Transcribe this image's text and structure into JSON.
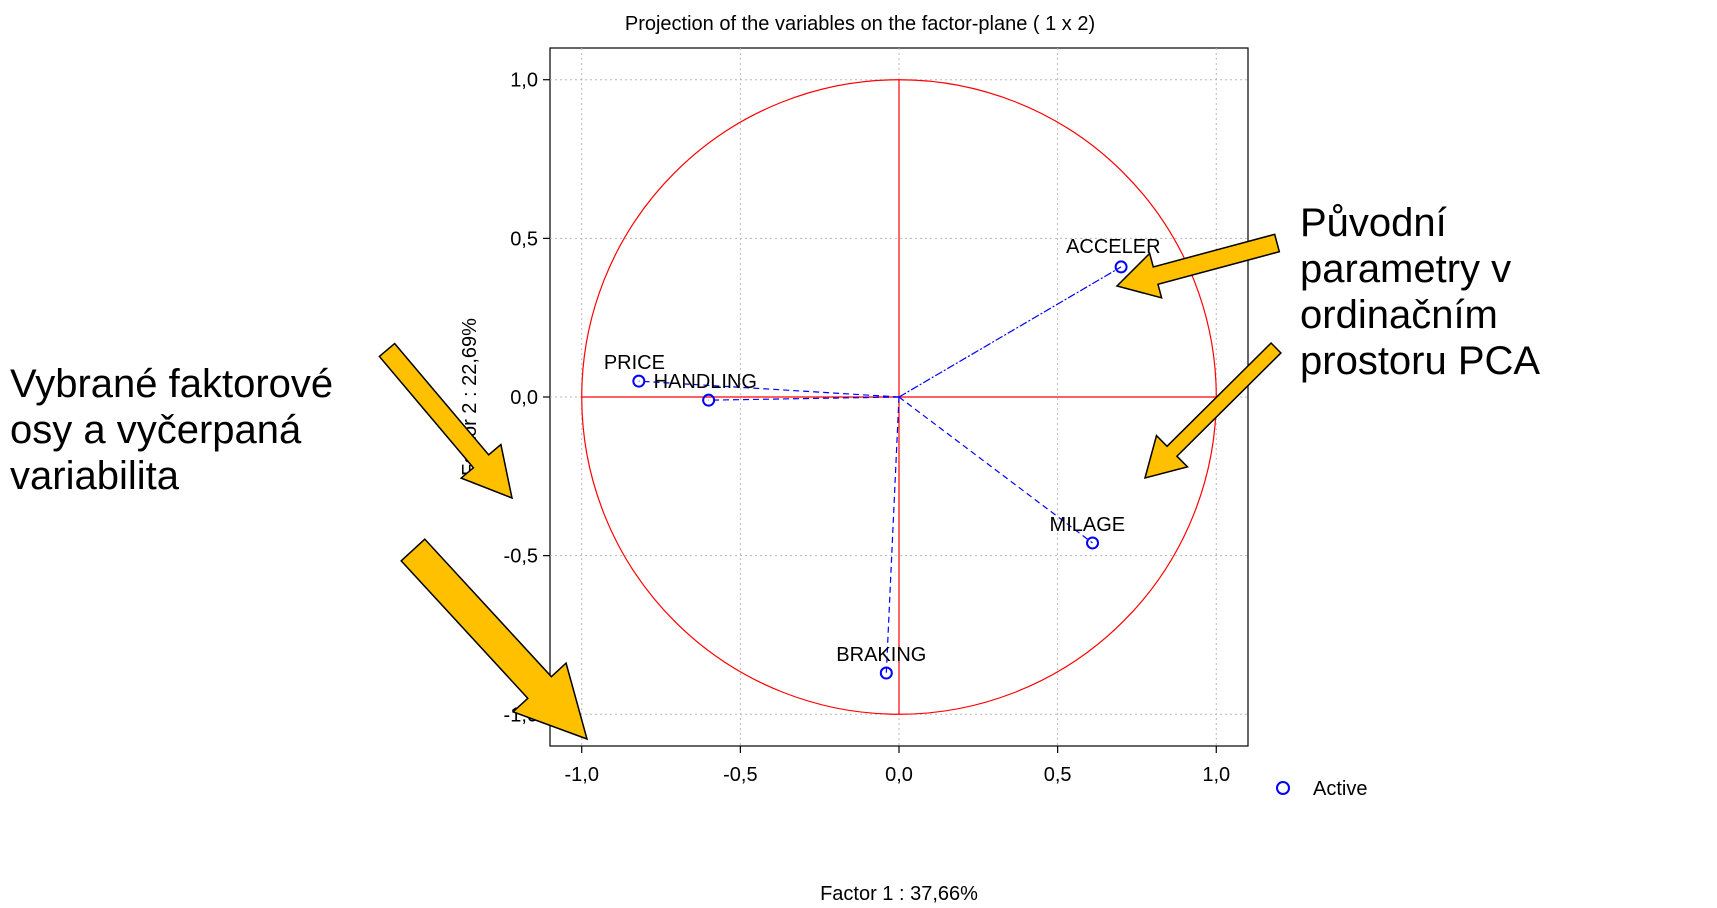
{
  "chart_data": {
    "type": "scatter",
    "title": "Projection of the variables on the factor-plane (  1 x   2)",
    "xlabel": "Factor 1 : 37,66%",
    "ylabel": "Factor 2 : 22,69%",
    "xlim": [
      -1.1,
      1.1
    ],
    "ylim": [
      -1.1,
      1.1
    ],
    "xticks": [
      {
        "value": -1.0,
        "label": "-1,0"
      },
      {
        "value": -0.5,
        "label": "-0,5"
      },
      {
        "value": 0.0,
        "label": "0,0"
      },
      {
        "value": 0.5,
        "label": "0,5"
      },
      {
        "value": 1.0,
        "label": "1,0"
      }
    ],
    "yticks": [
      {
        "value": 1.0,
        "label": "1,0"
      },
      {
        "value": 0.5,
        "label": "0,5"
      },
      {
        "value": 0.0,
        "label": "0,0"
      },
      {
        "value": -0.5,
        "label": "-0,5"
      },
      {
        "value": -1.0,
        "label": "-1,0"
      }
    ],
    "grid": true,
    "unit_circle": true,
    "legend": {
      "position": "bottom-right",
      "entries": [
        "Active"
      ]
    },
    "series": [
      {
        "name": "Active",
        "color": "#0000ff",
        "points": [
          {
            "label": "PRICE",
            "x": -0.82,
            "y": 0.05
          },
          {
            "label": "HANDLING",
            "x": -0.6,
            "y": -0.01
          },
          {
            "label": "ACCELER",
            "x": 0.7,
            "y": 0.41
          },
          {
            "label": "MILAGE",
            "x": 0.61,
            "y": -0.46
          },
          {
            "label": "BRAKING",
            "x": -0.04,
            "y": -0.87
          }
        ]
      }
    ],
    "colors": {
      "axes": "#ff0000",
      "circle": "#ff0000",
      "points": "#0000ff",
      "arrow": "#ffc000"
    }
  },
  "annotations": {
    "left": "Vybrané faktorové\nosy a vyčerpaná\nvariabilita",
    "right": "Původní\nparametry v\nordinačním\nprostoru PCA"
  }
}
